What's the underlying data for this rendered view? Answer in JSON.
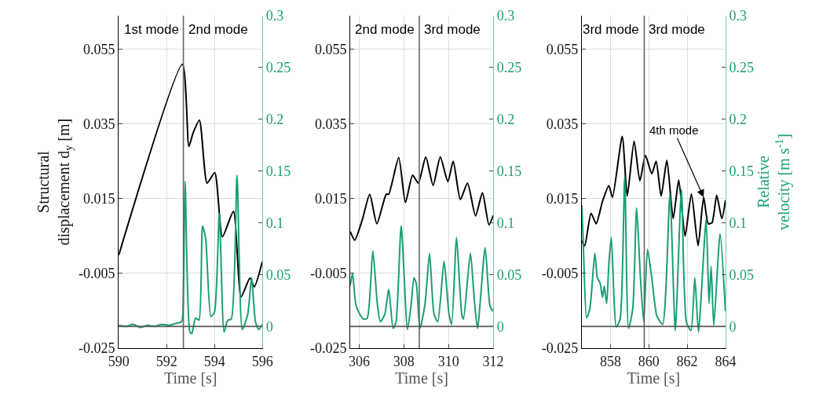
{
  "chart_data": [
    {
      "type": "line",
      "xlabel": "Time [s]",
      "ylabel": "Structural displacement d$_{y}$ [m]",
      "xlim": [
        590,
        596
      ],
      "xticks": [
        590,
        592,
        594,
        596
      ],
      "ylim": [
        -0.025,
        0.064
      ],
      "yticks": [
        -0.025,
        -0.005,
        0.015,
        0.035,
        0.055
      ],
      "y2lim": [
        -0.021,
        0.3
      ],
      "y2ticks": [
        0,
        0.05,
        0.1,
        0.15,
        0.2,
        0.25,
        0.3
      ],
      "grid": true,
      "ref_lines": [
        {
          "axis": "x",
          "value": 592.7,
          "color": "#666666"
        },
        {
          "axis": "y2",
          "value": 0,
          "color": "#555555"
        }
      ],
      "annotations": [
        "1st mode",
        "2nd mode"
      ],
      "series": [
        {
          "color": "#000000",
          "x": [
            590,
            592.66,
            592.93,
            593.1,
            593.37,
            593.69,
            594.01,
            594.33,
            594.79,
            595.11,
            595.48,
            595.66,
            596
          ],
          "values": [
            -0.0001,
            0.051,
            0.029,
            0.0325,
            0.036,
            0.0192,
            0.022,
            0.0048,
            0.0116,
            -0.0113,
            -0.0062,
            -0.0086,
            -0.0018
          ]
        },
        {
          "color": "#1a9e77",
          "axis": "y2",
          "x": [
            590,
            590.3,
            590.6,
            590.9,
            591.2,
            591.5,
            591.8,
            592.1,
            592.4,
            592.6,
            592.66,
            592.77,
            592.97,
            593.05,
            593.21,
            593.35,
            593.5,
            593.63,
            593.85,
            594.0,
            594.2,
            594.4,
            594.55,
            594.7,
            594.94,
            595.16,
            595.39,
            595.55,
            595.71,
            595.85,
            596
          ],
          "values": [
            0.001,
            0.0,
            0.002,
            -0.001,
            0.001,
            0.0,
            0.002,
            0.001,
            0.003,
            0.004,
            0.007,
            0.14,
            -0.0055,
            -0.007,
            0.008,
            0.006,
            0.097,
            0.085,
            0.0095,
            0.014,
            0.109,
            -0.0055,
            0.006,
            0.007,
            0.146,
            -0.003,
            0.012,
            0.047,
            0.0045,
            -0.003,
            0.002
          ]
        }
      ]
    },
    {
      "type": "line",
      "xlabel": "Time [s]",
      "xlim": [
        305.6,
        312
      ],
      "xticks": [
        306,
        308,
        310,
        312
      ],
      "ylim": [
        -0.025,
        0.064
      ],
      "yticks": [
        -0.025,
        -0.005,
        0.015,
        0.035,
        0.055
      ],
      "y2lim": [
        -0.021,
        0.3
      ],
      "y2ticks": [
        0,
        0.05,
        0.1,
        0.15,
        0.2,
        0.25,
        0.3
      ],
      "grid": true,
      "ref_lines": [
        {
          "axis": "x",
          "value": 308.69,
          "color": "#666666"
        },
        {
          "axis": "y2",
          "value": 0,
          "color": "#555555"
        }
      ],
      "annotations": [
        "2nd mode",
        "3rd mode"
      ],
      "series": [
        {
          "color": "#000000",
          "x": [
            305.6,
            305.8,
            306.14,
            306.47,
            306.79,
            307.21,
            307.32,
            307.77,
            308.07,
            308.39,
            308.65,
            308.98,
            309.31,
            309.63,
            309.97,
            310.21,
            310.53,
            310.85,
            311.21,
            311.52,
            311.81,
            312
          ],
          "values": [
            0.0062,
            0.0039,
            0.0094,
            0.0162,
            0.0083,
            0.0162,
            0.0162,
            0.026,
            0.014,
            0.0213,
            0.0192,
            0.0262,
            0.0186,
            0.0262,
            0.0196,
            0.025,
            0.0148,
            0.0192,
            0.0104,
            0.0166,
            0.008,
            0.0105
          ]
        },
        {
          "color": "#1a9e77",
          "axis": "y2",
          "x": [
            305.6,
            305.7,
            305.85,
            306.02,
            306.19,
            306.36,
            306.61,
            306.81,
            306.95,
            307.15,
            307.32,
            307.52,
            307.65,
            307.88,
            308.16,
            308.33,
            308.45,
            308.56,
            308.72,
            308.95,
            309.15,
            309.35,
            309.52,
            309.8,
            310.02,
            310.14,
            310.36,
            310.59,
            310.67,
            310.98,
            311.15,
            311.3,
            311.64,
            311.86,
            312
          ],
          "values": [
            0.0395,
            0.051,
            0.021,
            0.012,
            0.007,
            0.008,
            0.073,
            0.022,
            0.0045,
            0.012,
            0.036,
            -0.002,
            0.0045,
            0.097,
            -0.003,
            0.022,
            0.047,
            0.041,
            -0.002,
            0.022,
            0.0707,
            0.012,
            0.0045,
            0.063,
            0.012,
            0.002,
            0.0858,
            0.012,
            0.007,
            0.0707,
            0.027,
            -0.002,
            0.076,
            0.0195,
            0.0145
          ]
        }
      ]
    },
    {
      "type": "line",
      "xlabel": "Time [s]",
      "y2label": "Relative velocity [m s$^{-1}$]",
      "xlim": [
        856.5,
        864
      ],
      "xticks": [
        858,
        860,
        862,
        864
      ],
      "ylim": [
        -0.025,
        0.064
      ],
      "yticks": [
        -0.025,
        -0.005,
        0.015,
        0.035,
        0.055
      ],
      "y2lim": [
        -0.021,
        0.3
      ],
      "y2ticks": [
        0,
        0.05,
        0.1,
        0.15,
        0.2,
        0.25,
        0.3
      ],
      "grid": true,
      "ref_lines": [
        {
          "axis": "x",
          "value": 859.76,
          "color": "#666666"
        },
        {
          "axis": "y2",
          "value": 0,
          "color": "#555555"
        }
      ],
      "annotations": [
        "3rd mode",
        "3rd mode",
        {
          "text": "4th mode",
          "x": 862.86,
          "y": 0.0154
        }
      ],
      "series": [
        {
          "color": "#000000",
          "x": [
            856.5,
            856.65,
            856.98,
            857.25,
            857.58,
            857.91,
            858.1,
            858.61,
            858.87,
            859.23,
            859.53,
            859.82,
            860.15,
            860.38,
            860.64,
            860.94,
            861.27,
            861.56,
            861.89,
            862.22,
            862.57,
            862.86,
            863.1,
            863.3,
            863.54,
            863.81,
            864
          ],
          "values": [
            0.0038,
            0.0024,
            0.0111,
            0.0083,
            0.0143,
            0.0185,
            0.0154,
            0.0317,
            0.0157,
            0.0304,
            0.0198,
            0.0266,
            0.0217,
            0.025,
            0.0157,
            0.0253,
            0.0097,
            0.02,
            0.005,
            0.0163,
            0.0024,
            0.0154,
            0.0083,
            0.0086,
            0.0159,
            0.0097,
            0.0146
          ]
        },
        {
          "color": "#1a9e77",
          "axis": "y2",
          "x": [
            856.5,
            856.59,
            856.75,
            856.92,
            857.18,
            857.31,
            857.45,
            857.58,
            857.67,
            857.8,
            857.91,
            858.04,
            858.3,
            858.5,
            858.74,
            858.94,
            859.16,
            859.36,
            859.56,
            859.73,
            859.93,
            860.15,
            860.42,
            860.72,
            861.1,
            861.38,
            861.7,
            861.96,
            862.2,
            862.4,
            862.59,
            862.99,
            863.14,
            863.25,
            863.39,
            863.72,
            864
          ],
          "values": [
            0.117,
            0.072,
            0.0083,
            0.017,
            0.0708,
            0.047,
            0.042,
            0.028,
            0.039,
            0.022,
            0.06,
            0.086,
            -0.0005,
            0.007,
            0.1445,
            -0.002,
            0.017,
            0.1145,
            0.047,
            0.0045,
            0.0745,
            0.047,
            0.01,
            0.002,
            0.1275,
            -0.004,
            0.132,
            0.004,
            -0.004,
            0.047,
            -0.0055,
            0.103,
            0.022,
            0.058,
            0.001,
            0.0895,
            0.0145
          ]
        }
      ]
    }
  ]
}
